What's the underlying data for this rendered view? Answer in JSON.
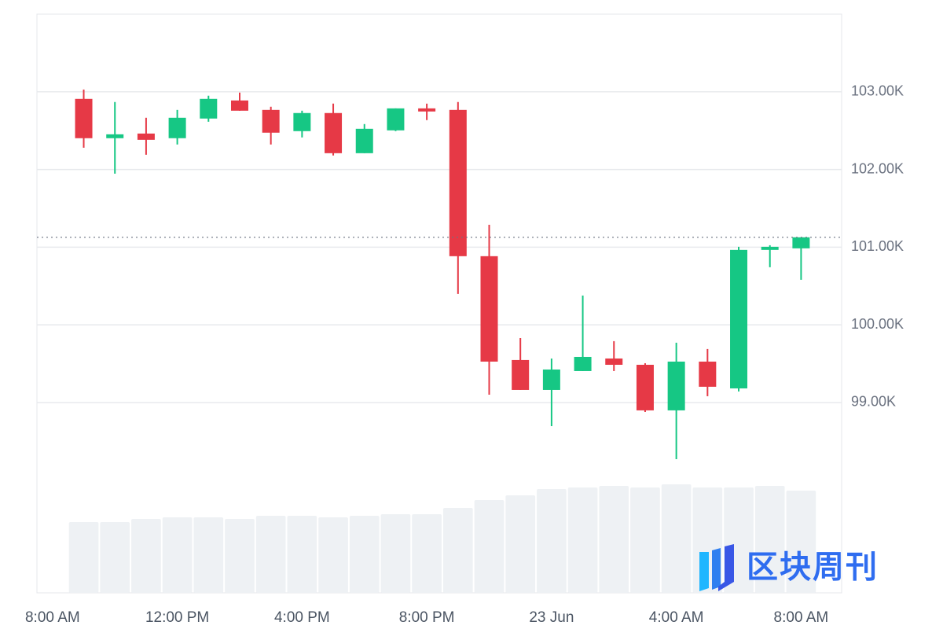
{
  "chart_data": {
    "type": "candlestick",
    "x": [
      9,
      10,
      11,
      12,
      13,
      14,
      15,
      16,
      17,
      18,
      19,
      20,
      21,
      22,
      23,
      24,
      25,
      26,
      27,
      28,
      29,
      30,
      31,
      32
    ],
    "open": [
      102909,
      102403,
      102463,
      102403,
      102656,
      102889,
      102767,
      102494,
      102727,
      102210,
      102504,
      102787,
      102767,
      100884,
      99547,
      99162,
      99405,
      99567,
      99486,
      98899,
      99527,
      99182,
      100965,
      100985
    ],
    "high": [
      103030,
      102869,
      102666,
      102767,
      102950,
      102990,
      102808,
      102757,
      102848,
      102585,
      102787,
      102848,
      102869,
      101289,
      99830,
      99567,
      100377,
      99790,
      99506,
      99770,
      99689,
      101005,
      101025,
      101127
    ],
    "low": [
      102281,
      101947,
      102190,
      102322,
      102615,
      102757,
      102322,
      102413,
      102180,
      102210,
      102494,
      102636,
      100398,
      99101,
      99162,
      98696,
      99405,
      99405,
      98878,
      98271,
      99081,
      99142,
      100742,
      100580
    ],
    "close": [
      102403,
      102453,
      102382,
      102666,
      102909,
      102757,
      102474,
      102727,
      102210,
      102524,
      102787,
      102747,
      100884,
      99527,
      99162,
      99425,
      99587,
      99486,
      98899,
      99527,
      99203,
      100965,
      101005,
      101127
    ],
    "volume": [
      90,
      90,
      94,
      96,
      96,
      94,
      98,
      98,
      96,
      98,
      100,
      100,
      108,
      118,
      124,
      132,
      134,
      136,
      134,
      138,
      134,
      134,
      136,
      130
    ],
    "up_color": "#16c784",
    "down_color": "#e63946",
    "volume_color": "#eef1f4",
    "xlim": [
      7.5,
      33.3
    ],
    "xticks": [
      {
        "value": 8,
        "label": "8:00 AM"
      },
      {
        "value": 12,
        "label": "12:00 PM"
      },
      {
        "value": 16,
        "label": "4:00 PM"
      },
      {
        "value": 20,
        "label": "8:00 PM"
      },
      {
        "value": 24,
        "label": "23 Jun"
      },
      {
        "value": 28,
        "label": "4:00 AM"
      },
      {
        "value": 32,
        "label": "8:00 AM"
      }
    ],
    "ylim": [
      96550,
      104000
    ],
    "yticks": [
      {
        "value": 99000,
        "label": "99.00K"
      },
      {
        "value": 100000,
        "label": "100.00K"
      },
      {
        "value": 101000,
        "label": "101.00K"
      },
      {
        "value": 102000,
        "label": "102.00K"
      },
      {
        "value": 103000,
        "label": "103.00K"
      }
    ],
    "grid": true,
    "watermark": "区块周刊"
  }
}
